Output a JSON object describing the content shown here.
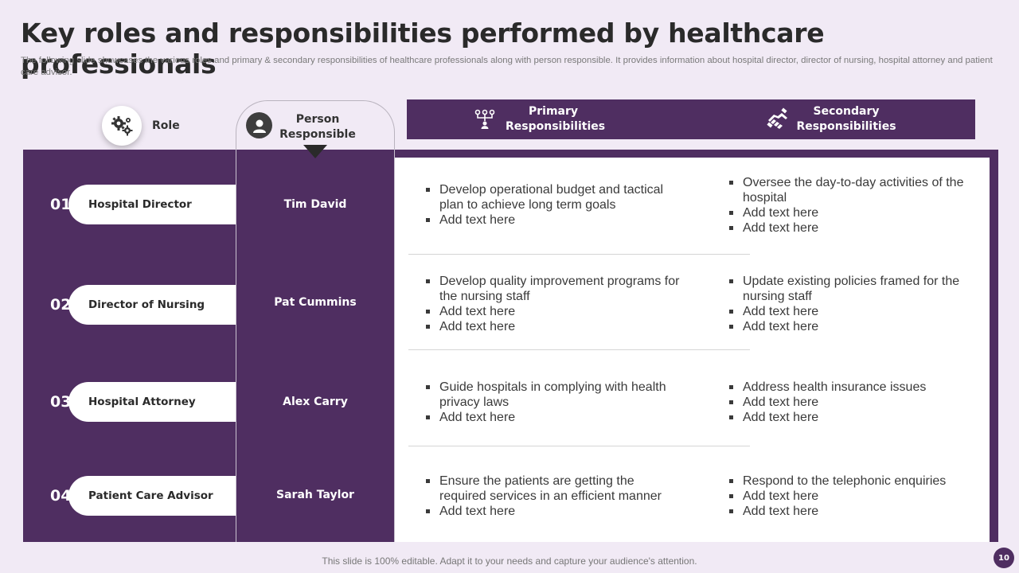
{
  "slide": {
    "title": "Key roles and responsibilities performed by healthcare professionals",
    "subtitle": "The following slide showcases the various roles and primary & secondary responsibilities of healthcare professionals along with person responsible. It provides information about hospital director, director of nursing, hospital attorney and patient care advisor.",
    "footer": "This slide is 100% editable. Adapt it to your needs and capture your audience's attention.",
    "page_number": "10"
  },
  "headers": {
    "role": "Role",
    "person": "Person Responsible",
    "primary": "Primary Responsibilities",
    "secondary": "Secondary Responsibilities"
  },
  "rows": [
    {
      "number": "01",
      "role": "Hospital Director",
      "person": "Tim David",
      "primary": [
        "Develop operational budget and tactical plan to achieve long term goals",
        "Add text here"
      ],
      "secondary": [
        "Oversee the day-to-day activities of the hospital",
        "Add text here",
        "Add text here"
      ]
    },
    {
      "number": "02",
      "role": "Director of Nursing",
      "person": "Pat Cummins",
      "primary": [
        "Develop quality improvement programs for the nursing staff",
        "Add text here",
        "Add text here"
      ],
      "secondary": [
        "Update existing policies framed for the nursing staff",
        "Add text here",
        "Add text here"
      ]
    },
    {
      "number": "03",
      "role": "Hospital Attorney",
      "person": "Alex Carry",
      "primary": [
        "Guide hospitals in complying with health privacy laws",
        "Add text here"
      ],
      "secondary": [
        "Address health insurance issues",
        "Add text here",
        "Add text here"
      ]
    },
    {
      "number": "04",
      "role": "Patient Care Advisor",
      "person": "Sarah Taylor",
      "primary": [
        "Ensure the patients are getting the required services in an efficient manner",
        "Add text here"
      ],
      "secondary": [
        "Respond to the telephonic enquiries",
        "Add text here",
        "Add text here"
      ]
    }
  ],
  "icons": {
    "role": "gears-icon",
    "person": "user-avatar-icon",
    "primary": "hierarchy-icon",
    "secondary": "handshake-icon"
  },
  "colors": {
    "accent": "#4f2e61",
    "background": "#f1eaf5"
  }
}
